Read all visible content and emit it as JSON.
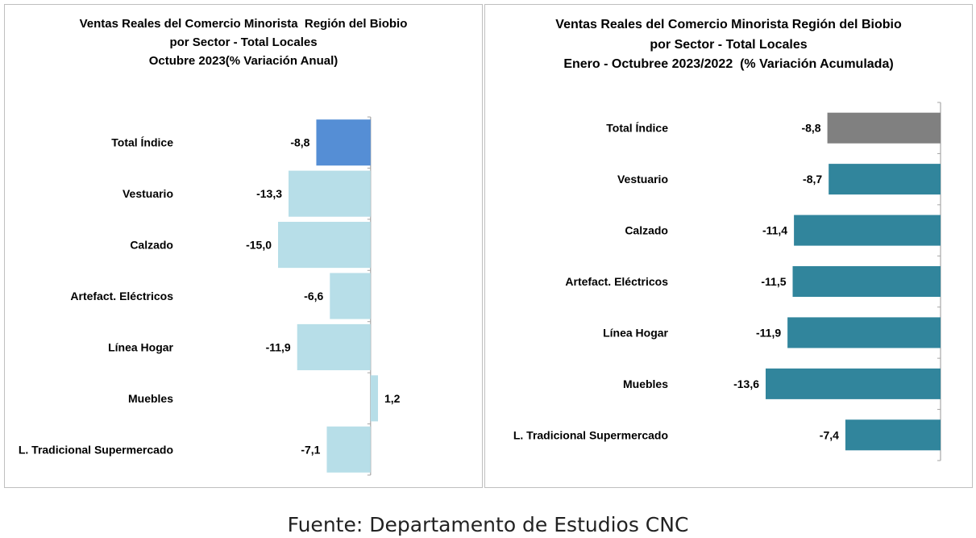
{
  "chart_data": [
    {
      "type": "bar",
      "orientation": "horizontal",
      "title_lines": [
        "Ventas Reales del Comercio Minorista  Región del Biobio",
        "por Sector - Total Locales",
        "Octubre 2023(% Variación Anual)"
      ],
      "categories": [
        "Total Índice",
        "Vestuario",
        "Calzado",
        "Artefact. Eléctricos",
        "Línea Hogar",
        "Muebles",
        "L. Tradicional Supermercado"
      ],
      "values": [
        -8.8,
        -13.3,
        -15.0,
        -6.6,
        -11.9,
        1.2,
        -7.1
      ],
      "value_labels": [
        "-8,8",
        "-13,3",
        "-15,0",
        "-6,6",
        "-11,9",
        "1,2",
        "-7,1"
      ],
      "colors": [
        "#558ed5",
        "#b7dee8",
        "#b7dee8",
        "#b7dee8",
        "#b7dee8",
        "#b7dee8",
        "#b7dee8"
      ],
      "xlim": [
        -15.0,
        1.2
      ],
      "grid": false
    },
    {
      "type": "bar",
      "orientation": "horizontal",
      "title_lines": [
        "Ventas Reales del Comercio Minorista Región del Biobio",
        "por Sector - Total Locales",
        "Enero - Octubree 2023/2022  (% Variación Acumulada)"
      ],
      "categories": [
        "Total Índice",
        "Vestuario",
        "Calzado",
        "Artefact. Eléctricos",
        "Línea Hogar",
        "Muebles",
        "L. Tradicional Supermercado"
      ],
      "values": [
        -8.8,
        -8.7,
        -11.4,
        -11.5,
        -11.9,
        -13.6,
        -7.4
      ],
      "value_labels": [
        "-8,8",
        "-8,7",
        "-11,4",
        "-11,5",
        "-11,9",
        "-13,6",
        "-7,4"
      ],
      "colors": [
        "#808080",
        "#31859c",
        "#31859c",
        "#31859c",
        "#31859c",
        "#31859c",
        "#31859c"
      ],
      "xlim": [
        -13.6,
        0
      ],
      "grid": false
    }
  ],
  "source": "Fuente: Departamento de Estudios CNC"
}
